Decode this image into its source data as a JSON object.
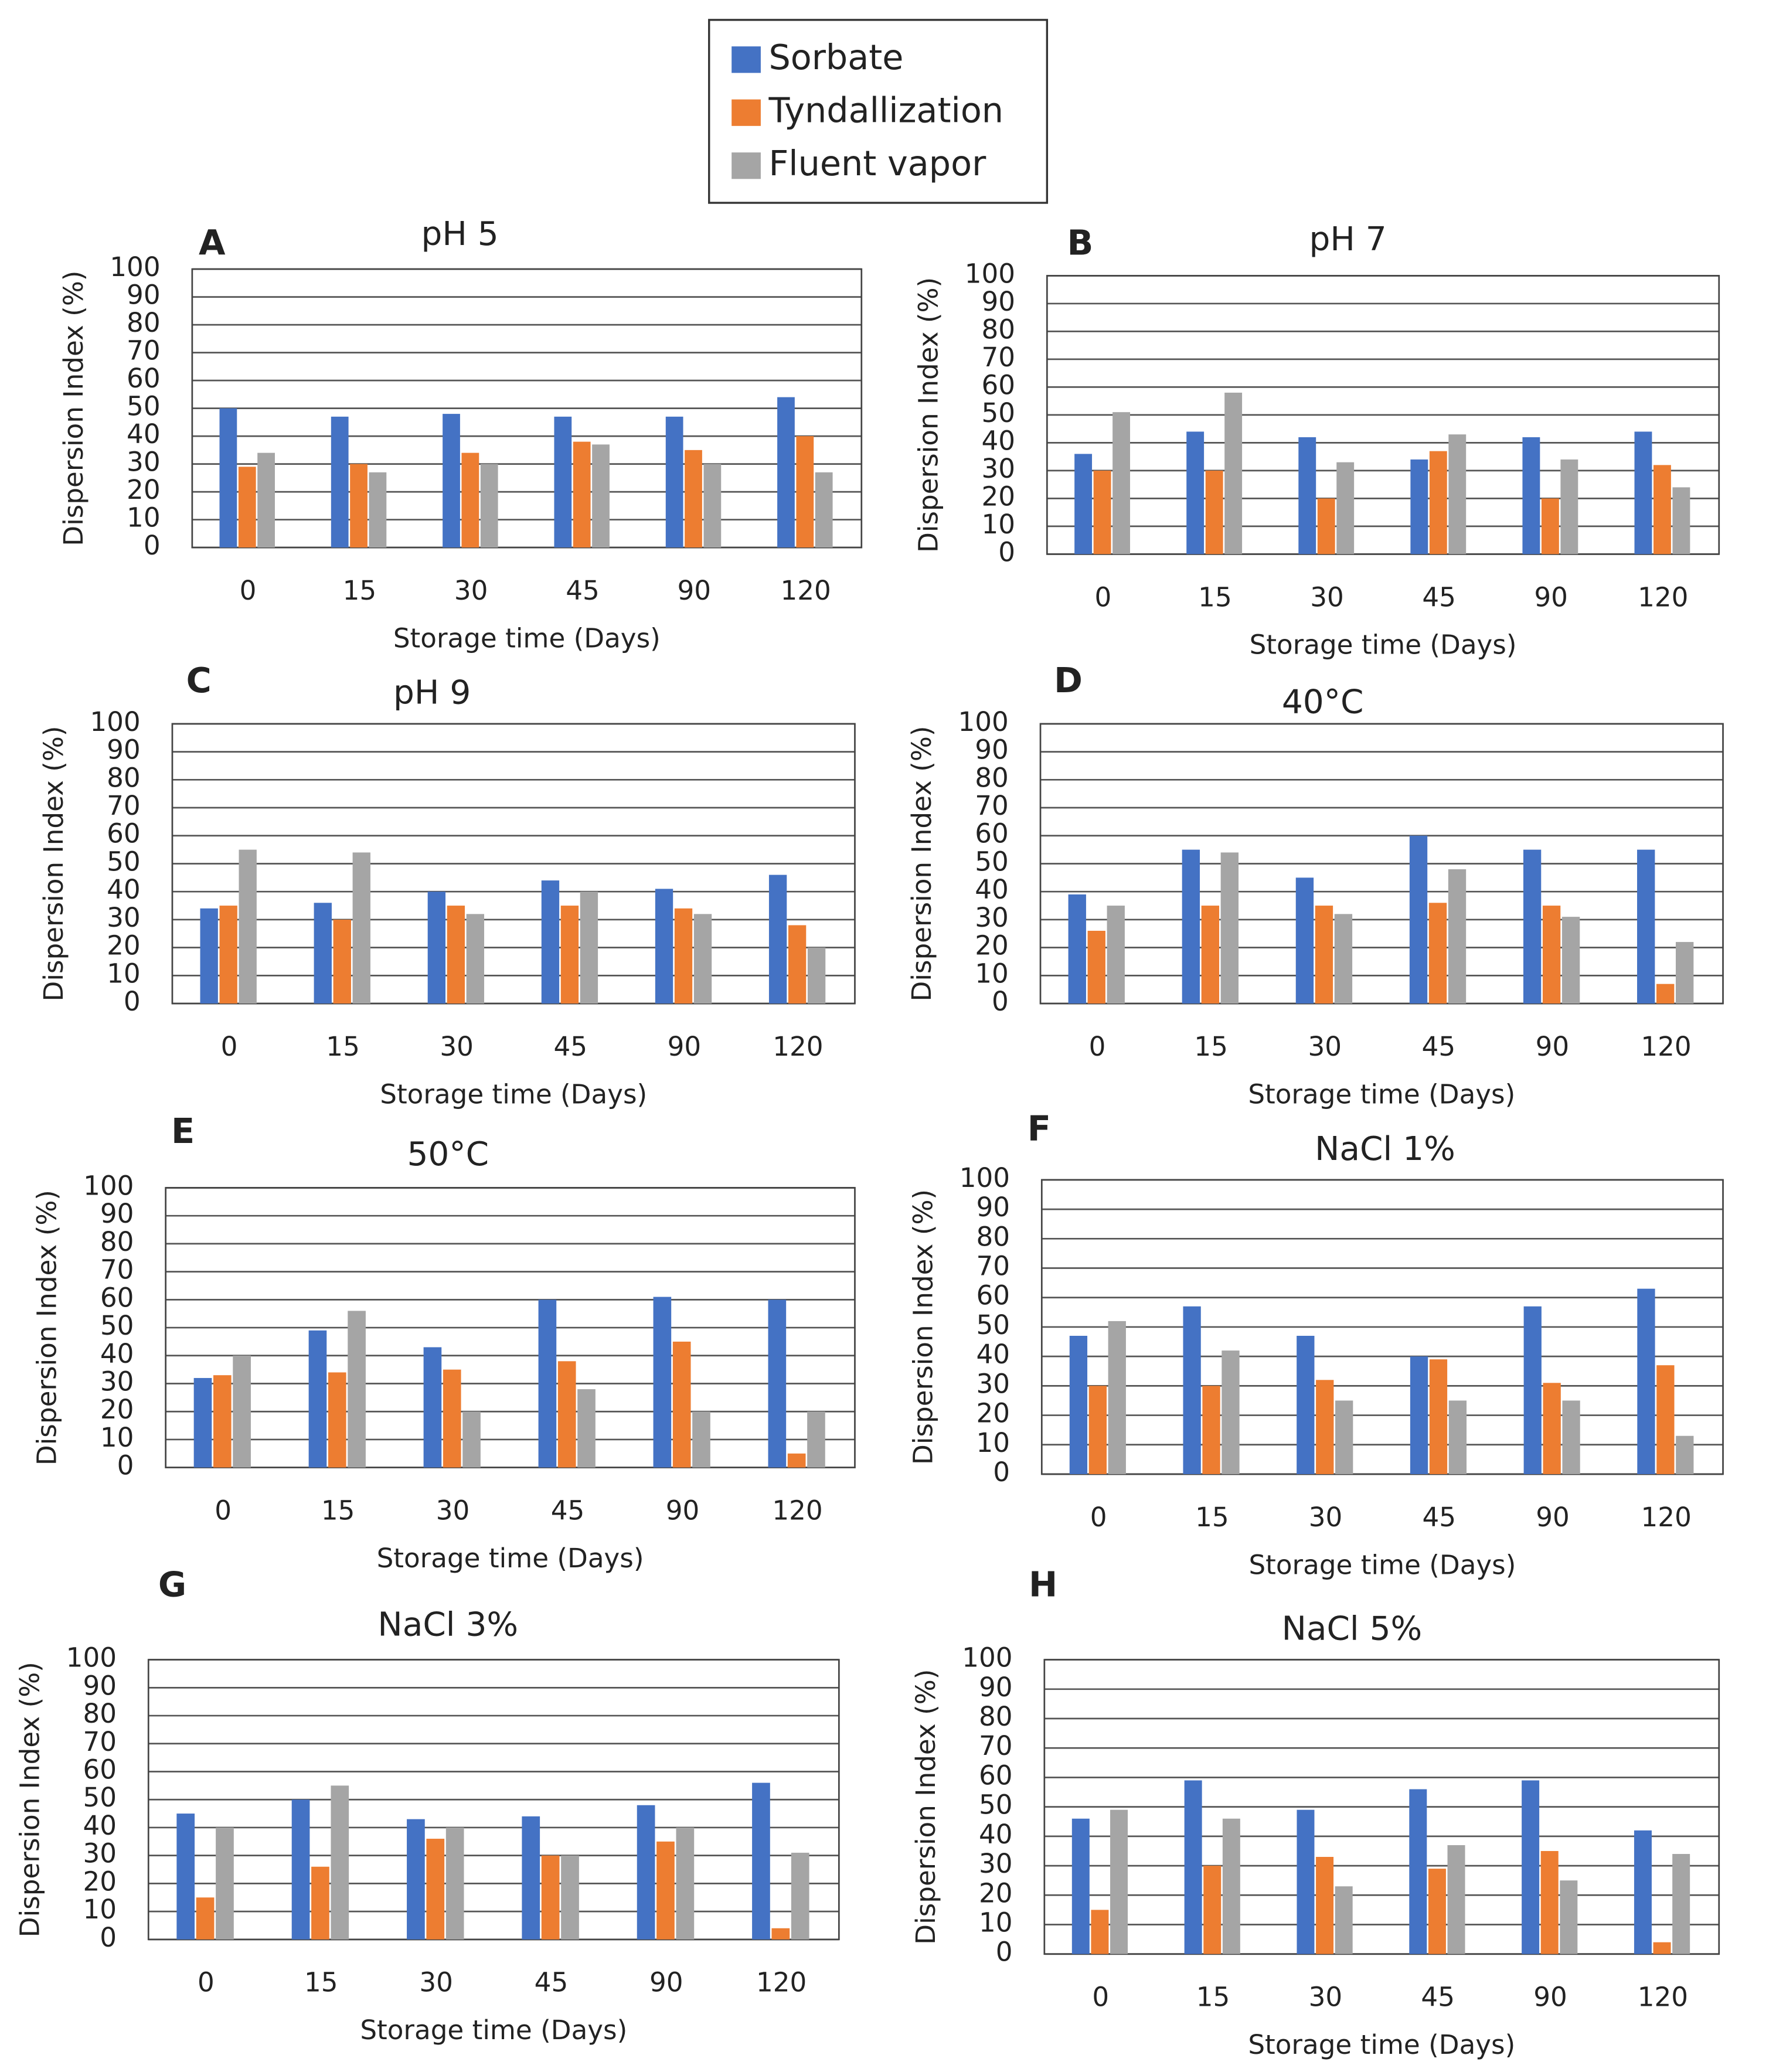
{
  "chart_data": [
    {
      "type": "bar",
      "panel": "A",
      "title": "pH 5",
      "xlabel": "Storage time (Days)",
      "ylabel": "Dispersion Index (%)",
      "categories": [
        "0",
        "15",
        "30",
        "45",
        "90",
        "120"
      ],
      "ylim": [
        0,
        100
      ],
      "yticks": [
        0,
        10,
        20,
        30,
        40,
        50,
        60,
        70,
        80,
        90,
        100
      ],
      "grid": true,
      "series": [
        {
          "name": "Sorbate",
          "color": "#4472c4",
          "values": [
            50,
            47,
            48,
            47,
            47,
            54
          ]
        },
        {
          "name": "Tyndallization",
          "color": "#ed7d31",
          "values": [
            29,
            30,
            34,
            38,
            35,
            40
          ]
        },
        {
          "name": "Fluent vapor",
          "color": "#a5a5a5",
          "values": [
            34,
            27,
            30,
            37,
            30,
            27
          ]
        }
      ]
    },
    {
      "type": "bar",
      "panel": "B",
      "title": "pH 7",
      "xlabel": "Storage time (Days)",
      "ylabel": "Dispersion Index (%)",
      "categories": [
        "0",
        "15",
        "30",
        "45",
        "90",
        "120"
      ],
      "ylim": [
        0,
        100
      ],
      "yticks": [
        0,
        10,
        20,
        30,
        40,
        50,
        60,
        70,
        80,
        90,
        100
      ],
      "grid": true,
      "series": [
        {
          "name": "Sorbate",
          "color": "#4472c4",
          "values": [
            36,
            44,
            42,
            34,
            42,
            44
          ]
        },
        {
          "name": "Tyndallization",
          "color": "#ed7d31",
          "values": [
            30,
            30,
            20,
            37,
            20,
            32
          ]
        },
        {
          "name": "Fluent vapor",
          "color": "#a5a5a5",
          "values": [
            51,
            58,
            33,
            43,
            34,
            24
          ]
        }
      ]
    },
    {
      "type": "bar",
      "panel": "C",
      "title": "pH 9",
      "xlabel": "Storage time (Days)",
      "ylabel": "Dispersion Index (%)",
      "categories": [
        "0",
        "15",
        "30",
        "45",
        "90",
        "120"
      ],
      "ylim": [
        0,
        100
      ],
      "yticks": [
        0,
        10,
        20,
        30,
        40,
        50,
        60,
        70,
        80,
        90,
        100
      ],
      "grid": true,
      "series": [
        {
          "name": "Sorbate",
          "color": "#4472c4",
          "values": [
            34,
            36,
            40,
            44,
            41,
            46
          ]
        },
        {
          "name": "Tyndallization",
          "color": "#ed7d31",
          "values": [
            35,
            30,
            35,
            35,
            34,
            28
          ]
        },
        {
          "name": "Fluent vapor",
          "color": "#a5a5a5",
          "values": [
            55,
            54,
            32,
            40,
            32,
            20
          ]
        }
      ]
    },
    {
      "type": "bar",
      "panel": "D",
      "title": "40°C",
      "xlabel": "Storage time (Days)",
      "ylabel": "Dispersion Index (%)",
      "categories": [
        "0",
        "15",
        "30",
        "45",
        "90",
        "120"
      ],
      "ylim": [
        0,
        100
      ],
      "yticks": [
        0,
        10,
        20,
        30,
        40,
        50,
        60,
        70,
        80,
        90,
        100
      ],
      "grid": true,
      "series": [
        {
          "name": "Sorbate",
          "color": "#4472c4",
          "values": [
            39,
            55,
            45,
            60,
            55,
            55
          ]
        },
        {
          "name": "Tyndallization",
          "color": "#ed7d31",
          "values": [
            26,
            35,
            35,
            36,
            35,
            7
          ]
        },
        {
          "name": "Fluent vapor",
          "color": "#a5a5a5",
          "values": [
            35,
            54,
            32,
            48,
            31,
            22
          ]
        }
      ]
    },
    {
      "type": "bar",
      "panel": "E",
      "title": "50°C",
      "xlabel": "Storage time (Days)",
      "ylabel": "Dispersion Index (%)",
      "categories": [
        "0",
        "15",
        "30",
        "45",
        "90",
        "120"
      ],
      "ylim": [
        0,
        100
      ],
      "yticks": [
        0,
        10,
        20,
        30,
        40,
        50,
        60,
        70,
        80,
        90,
        100
      ],
      "grid": true,
      "series": [
        {
          "name": "Sorbate",
          "color": "#4472c4",
          "values": [
            32,
            49,
            43,
            60,
            61,
            60
          ]
        },
        {
          "name": "Tyndallization",
          "color": "#ed7d31",
          "values": [
            33,
            34,
            35,
            38,
            45,
            5
          ]
        },
        {
          "name": "Fluent vapor",
          "color": "#a5a5a5",
          "values": [
            40,
            56,
            20,
            28,
            20,
            20
          ]
        }
      ]
    },
    {
      "type": "bar",
      "panel": "F",
      "title": "NaCl 1%",
      "xlabel": "Storage time (Days)",
      "ylabel": "Dispersion Index (%)",
      "categories": [
        "0",
        "15",
        "30",
        "45",
        "90",
        "120"
      ],
      "ylim": [
        0,
        100
      ],
      "yticks": [
        0,
        10,
        20,
        30,
        40,
        50,
        60,
        70,
        80,
        90,
        100
      ],
      "grid": true,
      "series": [
        {
          "name": "Sorbate",
          "color": "#4472c4",
          "values": [
            47,
            57,
            47,
            40,
            57,
            63
          ]
        },
        {
          "name": "Tyndallization",
          "color": "#ed7d31",
          "values": [
            30,
            30,
            32,
            39,
            31,
            37
          ]
        },
        {
          "name": "Fluent vapor",
          "color": "#a5a5a5",
          "values": [
            52,
            42,
            25,
            25,
            25,
            13
          ]
        }
      ]
    },
    {
      "type": "bar",
      "panel": "G",
      "title": "NaCl 3%",
      "xlabel": "Storage time (Days)",
      "ylabel": "Dispersion Index (%)",
      "categories": [
        "0",
        "15",
        "30",
        "45",
        "90",
        "120"
      ],
      "ylim": [
        0,
        100
      ],
      "yticks": [
        0,
        10,
        20,
        30,
        40,
        50,
        60,
        70,
        80,
        90,
        100
      ],
      "grid": true,
      "series": [
        {
          "name": "Sorbate",
          "color": "#4472c4",
          "values": [
            45,
            50,
            43,
            44,
            48,
            56
          ]
        },
        {
          "name": "Tyndallization",
          "color": "#ed7d31",
          "values": [
            15,
            26,
            36,
            30,
            35,
            4
          ]
        },
        {
          "name": "Fluent vapor",
          "color": "#a5a5a5",
          "values": [
            40,
            55,
            40,
            30,
            40,
            31
          ]
        }
      ]
    },
    {
      "type": "bar",
      "panel": "H",
      "title": "NaCl 5%",
      "xlabel": "Storage time (Days)",
      "ylabel": "Dispersion Index (%)",
      "categories": [
        "0",
        "15",
        "30",
        "45",
        "90",
        "120"
      ],
      "ylim": [
        0,
        100
      ],
      "yticks": [
        0,
        10,
        20,
        30,
        40,
        50,
        60,
        70,
        80,
        90,
        100
      ],
      "grid": true,
      "series": [
        {
          "name": "Sorbate",
          "color": "#4472c4",
          "values": [
            46,
            59,
            49,
            56,
            59,
            42
          ]
        },
        {
          "name": "Tyndallization",
          "color": "#ed7d31",
          "values": [
            15,
            30,
            33,
            29,
            35,
            4
          ]
        },
        {
          "name": "Fluent vapor",
          "color": "#a5a5a5",
          "values": [
            49,
            46,
            23,
            37,
            25,
            34
          ]
        }
      ]
    }
  ]
}
